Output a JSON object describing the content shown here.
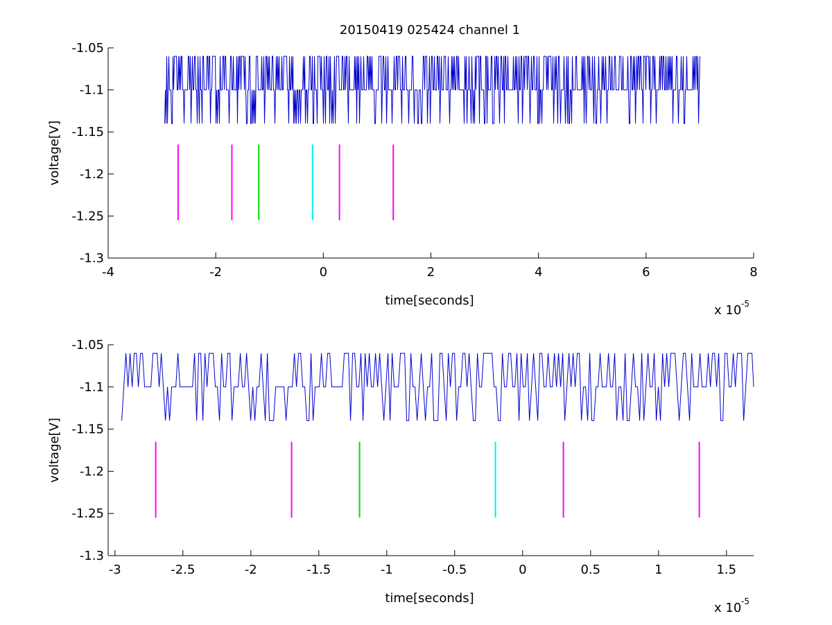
{
  "figure": {
    "title": "20150419 025424 channel 1"
  },
  "chart_data": [
    {
      "type": "line",
      "title": "20150419 025424 channel 1",
      "xlabel": "time[seconds]",
      "ylabel": "voltage[V]",
      "x_exponent_label": "x 10",
      "x_exponent": "-5",
      "xlim": [
        -4,
        8
      ],
      "ylim": [
        -1.3,
        -1.05
      ],
      "x_ticks": [
        -4,
        -2,
        0,
        2,
        4,
        6,
        8
      ],
      "x_tick_labels": [
        "-4",
        "-2",
        "0",
        "2",
        "4",
        "6",
        "8"
      ],
      "y_ticks": [
        -1.05,
        -1.1,
        -1.15,
        -1.2,
        -1.25,
        -1.3
      ],
      "y_tick_labels": [
        "-1.05",
        "-1.1",
        "-1.15",
        "-1.2",
        "-1.25",
        "-1.3"
      ],
      "grid": false,
      "signal": {
        "color": "#0000cc",
        "x_start": -2.95,
        "x_end": 7.0,
        "levels": [
          -1.06,
          -1.1,
          -1.14
        ],
        "baseline": -1.1
      },
      "markers": [
        {
          "x": -2.7,
          "y_top": -1.165,
          "y_bottom": -1.255,
          "color": "#ff00ff"
        },
        {
          "x": -1.7,
          "y_top": -1.165,
          "y_bottom": -1.255,
          "color": "#ff00ff"
        },
        {
          "x": -1.2,
          "y_top": -1.165,
          "y_bottom": -1.255,
          "color": "#00dd00"
        },
        {
          "x": -0.2,
          "y_top": -1.165,
          "y_bottom": -1.255,
          "color": "#00eeee"
        },
        {
          "x": 0.3,
          "y_top": -1.165,
          "y_bottom": -1.255,
          "color": "#ff00ff"
        },
        {
          "x": 1.3,
          "y_top": -1.165,
          "y_bottom": -1.255,
          "color": "#ff00ff"
        }
      ]
    },
    {
      "type": "line",
      "title": "",
      "xlabel": "time[seconds]",
      "ylabel": "voltage[V]",
      "x_exponent_label": "x 10",
      "x_exponent": "-5",
      "xlim": [
        -3.05,
        1.7
      ],
      "ylim": [
        -1.3,
        -1.05
      ],
      "x_ticks": [
        -3,
        -2.5,
        -2,
        -1.5,
        -1,
        -0.5,
        0,
        0.5,
        1,
        1.5
      ],
      "x_tick_labels": [
        "-3",
        "-2.5",
        "-2",
        "-1.5",
        "-1",
        "-0.5",
        "0",
        "0.5",
        "1",
        "1.5"
      ],
      "y_ticks": [
        -1.05,
        -1.1,
        -1.15,
        -1.2,
        -1.25,
        -1.3
      ],
      "y_tick_labels": [
        "-1.05",
        "-1.1",
        "-1.15",
        "-1.2",
        "-1.25",
        "-1.3"
      ],
      "grid": false,
      "signal": {
        "color": "#0000cc",
        "x_start": -2.95,
        "x_end": 1.7,
        "levels": [
          -1.06,
          -1.1,
          -1.14
        ],
        "baseline": -1.1
      },
      "markers": [
        {
          "x": -2.7,
          "y_top": -1.165,
          "y_bottom": -1.255,
          "color": "#ff00ff"
        },
        {
          "x": -1.7,
          "y_top": -1.165,
          "y_bottom": -1.255,
          "color": "#ff00ff"
        },
        {
          "x": -1.2,
          "y_top": -1.165,
          "y_bottom": -1.255,
          "color": "#00dd00"
        },
        {
          "x": -0.2,
          "y_top": -1.165,
          "y_bottom": -1.255,
          "color": "#00eeee"
        },
        {
          "x": 0.3,
          "y_top": -1.165,
          "y_bottom": -1.255,
          "color": "#ff00ff"
        },
        {
          "x": 1.3,
          "y_top": -1.165,
          "y_bottom": -1.255,
          "color": "#ff00ff"
        }
      ]
    }
  ]
}
